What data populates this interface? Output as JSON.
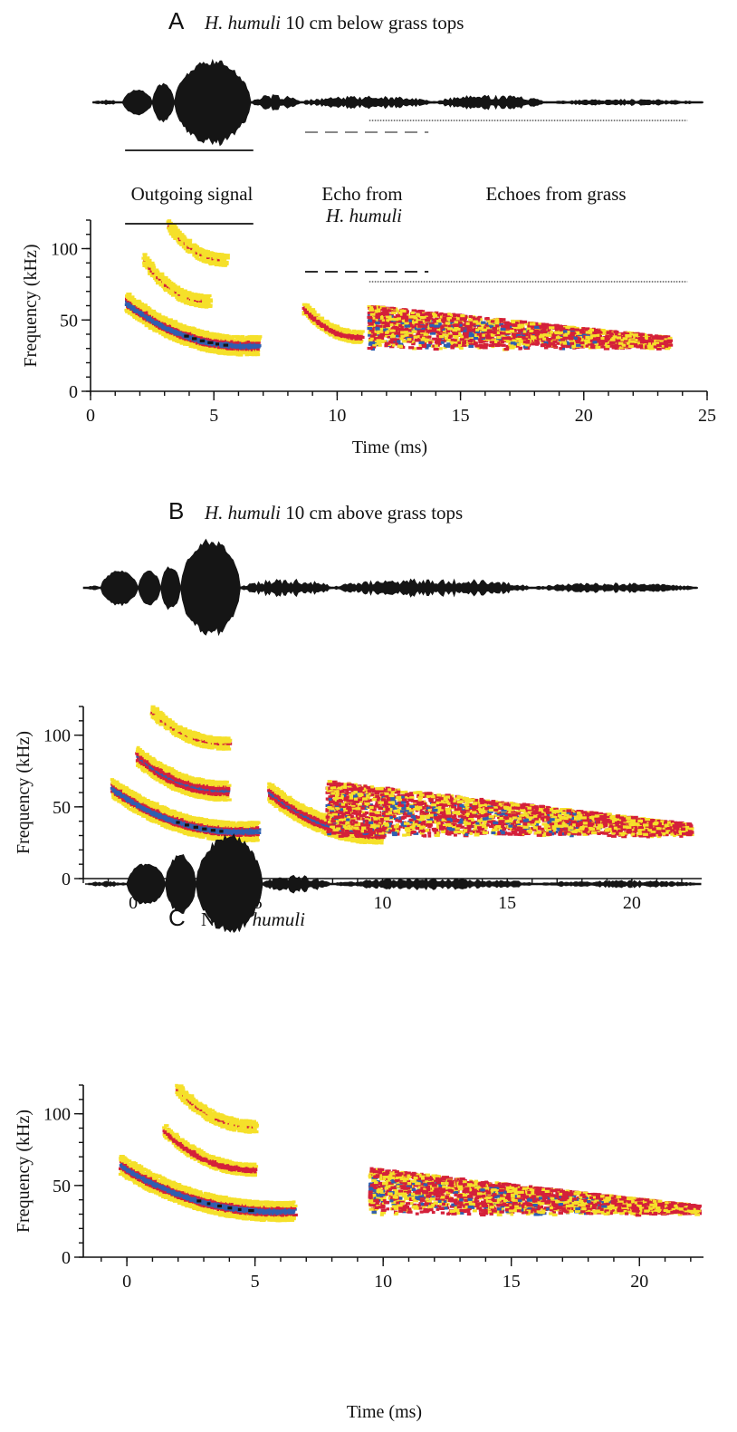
{
  "colors": {
    "low": "#f5e02a",
    "mid": "#d4203a",
    "high": "#2f5fb0",
    "peak": "#141414",
    "waveform": "#151515",
    "background": "#ffffff"
  },
  "chart_data": [
    {
      "type": "heatmap",
      "panel": "A",
      "title_italic": "H. humuli",
      "title_rest": " 10 cm below grass tops",
      "xlabel": "Time (ms)",
      "ylabel": "Frequency (kHz)",
      "xlim": [
        0,
        25
      ],
      "ylim": [
        0,
        120
      ],
      "xticks": [
        0,
        5,
        10,
        15,
        20,
        25
      ],
      "yticks": [
        0,
        50,
        100
      ],
      "annotations": {
        "outgoing": "Outgoing signal",
        "echo_from": "Echo from",
        "echo_species": "H. humuli",
        "grass": "Echoes from grass"
      },
      "markers": [
        {
          "label": "Outgoing signal",
          "x_start": 1.4,
          "x_end": 6.6,
          "style": "solid"
        },
        {
          "label": "Echo from H. humuli",
          "x_start": 8.7,
          "x_end": 13.7,
          "style": "dashed"
        },
        {
          "label": "Echoes from grass",
          "x_start": 11.3,
          "x_end": 24.2,
          "style": "dotted"
        }
      ],
      "envelope": [
        {
          "start": 0.1,
          "end": 1.3,
          "amp": 0.04
        },
        {
          "start": 1.3,
          "end": 2.5,
          "amp": 0.3
        },
        {
          "start": 2.5,
          "end": 3.4,
          "amp": 0.45
        },
        {
          "start": 3.4,
          "end": 6.5,
          "amp": 1.0
        },
        {
          "start": 6.5,
          "end": 8.5,
          "amp": 0.12
        },
        {
          "start": 8.5,
          "end": 14.0,
          "amp": 0.1
        },
        {
          "start": 14.0,
          "end": 18.5,
          "amp": 0.12
        },
        {
          "start": 18.5,
          "end": 24.8,
          "amp": 0.05
        }
      ],
      "sweeps": [
        {
          "t0": 1.5,
          "t1": 6.8,
          "f0": 62,
          "f1": 30,
          "f_end": 32,
          "level": 4
        },
        {
          "t0": 2.2,
          "t1": 4.8,
          "f0": 92,
          "f1": 63,
          "f_end": 63,
          "level": 1
        },
        {
          "t0": 3.2,
          "t1": 5.5,
          "f0": 116,
          "f1": 92,
          "f_end": 92,
          "level": 1
        },
        {
          "t0": 8.7,
          "t1": 11.0,
          "f0": 58,
          "f1": 38,
          "f_end": 38,
          "level": 2
        }
      ],
      "cloud": {
        "t0": 11.3,
        "t1": 23.5,
        "f_top": 60,
        "f_bottom": 30,
        "f_end_top": 38,
        "density": 1.0
      }
    },
    {
      "type": "heatmap",
      "panel": "B",
      "title_italic": "H. humuli",
      "title_rest": " 10 cm above grass tops",
      "xlabel": "",
      "ylabel": "Frequency (kHz)",
      "xlim": [
        -2,
        22.8
      ],
      "ylim": [
        0,
        120
      ],
      "xticks": [
        0,
        5,
        10,
        15,
        20
      ],
      "yticks": [
        0,
        50,
        100
      ],
      "envelope": [
        {
          "start": -2,
          "end": -1.3,
          "amp": 0.03
        },
        {
          "start": -1.3,
          "end": 0.2,
          "amp": 0.35
        },
        {
          "start": 0.2,
          "end": 1.1,
          "amp": 0.35
        },
        {
          "start": 1.1,
          "end": 1.9,
          "amp": 0.45
        },
        {
          "start": 1.9,
          "end": 4.3,
          "amp": 1.0
        },
        {
          "start": 4.3,
          "end": 8.0,
          "amp": 0.12
        },
        {
          "start": 8.0,
          "end": 16.0,
          "amp": 0.13
        },
        {
          "start": 16.0,
          "end": 22.6,
          "amp": 0.07
        }
      ],
      "sweeps": [
        {
          "t0": -0.8,
          "t1": 5.0,
          "f0": 63,
          "f1": 30,
          "f_end": 33,
          "level": 4
        },
        {
          "t0": 0.2,
          "t1": 3.8,
          "f0": 85,
          "f1": 61,
          "f_end": 61,
          "level": 3
        },
        {
          "t0": 0.8,
          "t1": 3.8,
          "f0": 116,
          "f1": 94,
          "f_end": 94,
          "level": 1
        },
        {
          "t0": 5.5,
          "t1": 10.0,
          "f0": 60,
          "f1": 31,
          "f_end": 31,
          "level": 3
        }
      ],
      "cloud": {
        "t0": 7.8,
        "t1": 22.4,
        "f_top": 68,
        "f_bottom": 30,
        "f_end_top": 38,
        "density": 1.0
      }
    },
    {
      "type": "heatmap",
      "panel": "C",
      "title_prefix": "No ",
      "title_italic": "H. humuli",
      "title_rest": "",
      "xlabel": "Time (ms)",
      "ylabel": "Frequency (kHz)",
      "xlim": [
        -1.7,
        22.5
      ],
      "ylim": [
        0,
        120
      ],
      "xticks": [
        0,
        5,
        10,
        15,
        20
      ],
      "yticks": [
        0,
        50,
        100
      ],
      "envelope": [
        {
          "start": -1.5,
          "end": 0.0,
          "amp": 0.04
        },
        {
          "start": 0.0,
          "end": 1.5,
          "amp": 0.42
        },
        {
          "start": 1.5,
          "end": 2.7,
          "amp": 0.6
        },
        {
          "start": 2.7,
          "end": 5.3,
          "amp": 1.0
        },
        {
          "start": 5.3,
          "end": 8.0,
          "amp": 0.12
        },
        {
          "start": 8.0,
          "end": 16.0,
          "amp": 0.08
        },
        {
          "start": 16.0,
          "end": 22.4,
          "amp": 0.05
        }
      ],
      "sweeps": [
        {
          "t0": -0.2,
          "t1": 6.5,
          "f0": 64,
          "f1": 30,
          "f_end": 32,
          "level": 4
        },
        {
          "t0": 1.5,
          "t1": 5.0,
          "f0": 88,
          "f1": 61,
          "f_end": 61,
          "level": 2
        },
        {
          "t0": 2.0,
          "t1": 5.0,
          "f0": 117,
          "f1": 91,
          "f_end": 91,
          "level": 1
        }
      ],
      "cloud": {
        "t0": 9.5,
        "t1": 22.3,
        "f_top": 62,
        "f_bottom": 30,
        "f_end_top": 36,
        "density": 1.0
      }
    }
  ]
}
